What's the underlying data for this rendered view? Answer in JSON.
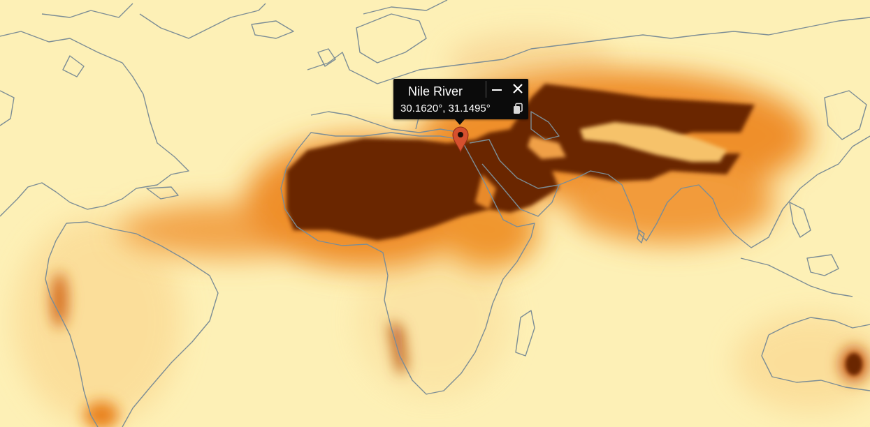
{
  "map": {
    "layer": "dust",
    "colors": {
      "background": "#fdf0b6",
      "high": "#6a2506",
      "mid": "#e9821c",
      "low": "#f8c96c",
      "coastline": "#7c8d95"
    }
  },
  "marker": {
    "icon": "map-pin-icon",
    "color": "#d6502e"
  },
  "popup": {
    "title": "Nile River",
    "coordinates": "30.1620°, 31.1495°",
    "minimize_icon": "minimize-icon",
    "close_icon": "close-icon",
    "copy_icon": "copy-icon"
  }
}
